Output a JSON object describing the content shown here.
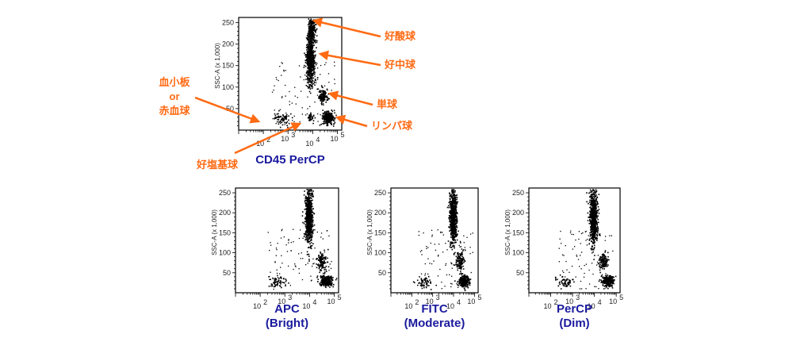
{
  "chart_data": [
    {
      "type": "scatter",
      "id": "main",
      "xlabel": "CD45 PerCP",
      "caption": [
        "CD45 PerCP"
      ],
      "ylabel": "SSC-A (x 1,000)",
      "xscale": "log",
      "xlim": [
        10,
        150000
      ],
      "ylim": [
        0,
        262
      ],
      "xticks": [
        {
          "v": 100,
          "t": "10",
          "e": "2"
        },
        {
          "v": 1000,
          "t": "10",
          "e": "3"
        },
        {
          "v": 10000,
          "t": "10",
          "e": "4"
        },
        {
          "v": 100000,
          "t": "10",
          "e": "5"
        }
      ],
      "yticks": [
        50,
        100,
        150,
        200,
        250
      ],
      "populations": [
        {
          "name": "好酸球",
          "cx": 8500,
          "cy": 232,
          "sx": 0.07,
          "sy": 15,
          "n": 260
        },
        {
          "name": "好中球",
          "cx": 7800,
          "cy": 165,
          "sx": 0.09,
          "sy": 30,
          "n": 650
        },
        {
          "name": "単球",
          "cx": 25000,
          "cy": 80,
          "sx": 0.09,
          "sy": 10,
          "n": 130
        },
        {
          "name": "リンパ球",
          "cx": 40000,
          "cy": 30,
          "sx": 0.12,
          "sy": 7,
          "n": 280
        },
        {
          "name": "血小板 or 赤血球",
          "cx": 500,
          "cy": 27,
          "sx": 0.18,
          "sy": 7,
          "n": 70
        },
        {
          "name": "好塩基球",
          "cx": 8000,
          "cy": 30,
          "sx": 0.08,
          "sy": 5,
          "n": 35
        }
      ],
      "annotations": [
        {
          "label": "好酸球"
        },
        {
          "label": "好中球"
        },
        {
          "label": "単球"
        },
        {
          "label": "リンパ球"
        },
        {
          "label": "血小板"
        },
        {
          "label": "or"
        },
        {
          "label": "赤血球"
        },
        {
          "label": "好塩基球"
        }
      ]
    },
    {
      "type": "scatter",
      "id": "apc",
      "caption": [
        "APC",
        "(Bright)"
      ],
      "ylabel": "SSC-A (x 1,000)",
      "xscale": "log",
      "xlim": [
        10,
        150000
      ],
      "ylim": [
        0,
        262
      ],
      "xticks": [
        {
          "v": 100,
          "t": "10",
          "e": "2"
        },
        {
          "v": 1000,
          "t": "10",
          "e": "3"
        },
        {
          "v": 10000,
          "t": "10",
          "e": "4"
        },
        {
          "v": 100000,
          "t": "10",
          "e": "5"
        }
      ],
      "yticks": [
        50,
        100,
        150,
        200,
        250
      ],
      "populations": [
        {
          "name": "好中球",
          "cx": 9000,
          "cy": 190,
          "sx": 0.08,
          "sy": 35,
          "n": 700
        },
        {
          "name": "単球",
          "cx": 30000,
          "cy": 80,
          "sx": 0.09,
          "sy": 12,
          "n": 130
        },
        {
          "name": "リンパ球",
          "cx": 45000,
          "cy": 30,
          "sx": 0.13,
          "sy": 7,
          "n": 260
        },
        {
          "name": "血小板 or 赤血球",
          "cx": 500,
          "cy": 27,
          "sx": 0.18,
          "sy": 7,
          "n": 60
        }
      ]
    },
    {
      "type": "scatter",
      "id": "fitc",
      "caption": [
        "FITC",
        "(Moderate)"
      ],
      "ylabel": "SSC-A (x 1,000)",
      "xscale": "log",
      "xlim": [
        10,
        150000
      ],
      "ylim": [
        0,
        262
      ],
      "xticks": [
        {
          "v": 100,
          "t": "10",
          "e": "2"
        },
        {
          "v": 1000,
          "t": "10",
          "e": "3"
        },
        {
          "v": 10000,
          "t": "10",
          "e": "4"
        },
        {
          "v": 100000,
          "t": "10",
          "e": "5"
        }
      ],
      "yticks": [
        50,
        100,
        150,
        200,
        250
      ],
      "populations": [
        {
          "name": "好中球",
          "cx": 9000,
          "cy": 190,
          "sx": 0.09,
          "sy": 35,
          "n": 700
        },
        {
          "name": "単球",
          "cx": 20000,
          "cy": 80,
          "sx": 0.1,
          "sy": 12,
          "n": 130
        },
        {
          "name": "リンパ球",
          "cx": 30000,
          "cy": 30,
          "sx": 0.13,
          "sy": 7,
          "n": 260
        },
        {
          "name": "血小板 or 赤血球",
          "cx": 400,
          "cy": 27,
          "sx": 0.18,
          "sy": 7,
          "n": 60
        }
      ]
    },
    {
      "type": "scatter",
      "id": "percp",
      "caption": [
        "PerCP",
        "(Dim)"
      ],
      "ylabel": "SSC-A (x 1,000)",
      "xscale": "log",
      "xlim": [
        10,
        150000
      ],
      "ylim": [
        0,
        262
      ],
      "xticks": [
        {
          "v": 100,
          "t": "10",
          "e": "2"
        },
        {
          "v": 1000,
          "t": "10",
          "e": "3"
        },
        {
          "v": 10000,
          "t": "10",
          "e": "4"
        },
        {
          "v": 100000,
          "t": "10",
          "e": "5"
        }
      ],
      "yticks": [
        50,
        100,
        150,
        200,
        250
      ],
      "populations": [
        {
          "name": "好中球",
          "cx": 8500,
          "cy": 190,
          "sx": 0.09,
          "sy": 35,
          "n": 700
        },
        {
          "name": "単球",
          "cx": 25000,
          "cy": 80,
          "sx": 0.1,
          "sy": 12,
          "n": 130
        },
        {
          "name": "リンパ球",
          "cx": 40000,
          "cy": 30,
          "sx": 0.13,
          "sy": 7,
          "n": 260
        },
        {
          "name": "血小板 or 赤血球",
          "cx": 400,
          "cy": 27,
          "sx": 0.18,
          "sy": 7,
          "n": 60
        }
      ]
    }
  ],
  "colors": {
    "annotation": "#ff6a13",
    "caption": "#1a1a9e",
    "points": "#000000"
  }
}
